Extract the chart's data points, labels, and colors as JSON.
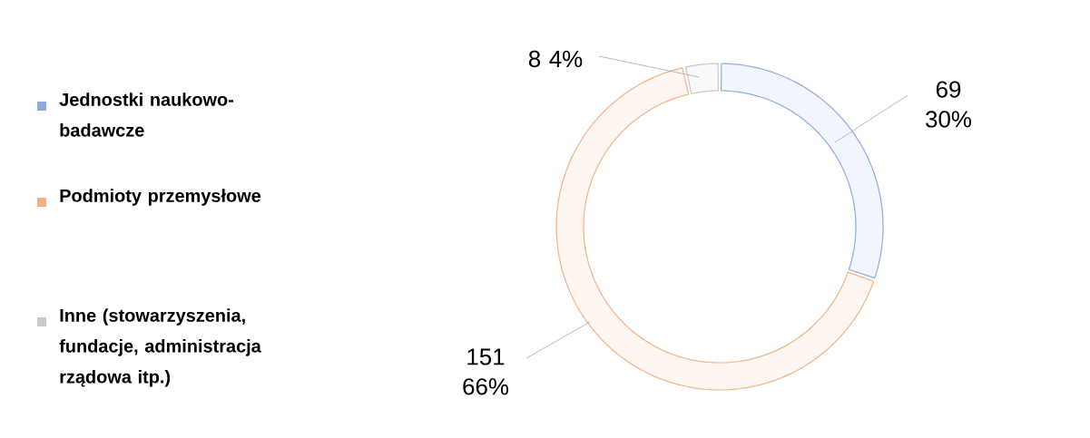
{
  "chart_data": {
    "type": "donut",
    "categories": [
      "Jednostki naukowo-badawcze",
      "Podmioty przemysłowe",
      "Inne (stowarzyszenia, fundacje, administracja rządowa itp.)"
    ],
    "values": [
      69,
      151,
      8
    ],
    "colors": [
      "#8faadc",
      "#f4b183",
      "#c9c9c9"
    ],
    "value_labels": [
      "69 30%",
      "151 66%",
      "8 4%"
    ],
    "legend": "left"
  }
}
